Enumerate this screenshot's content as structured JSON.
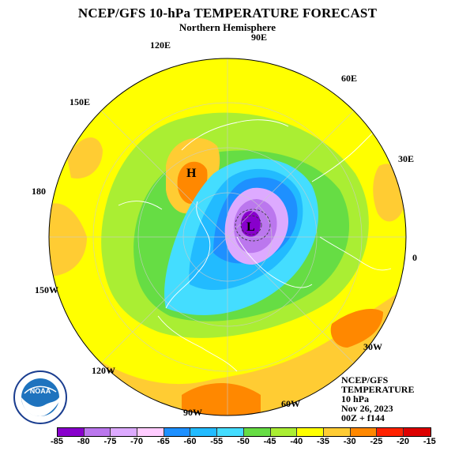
{
  "title": "NCEP/GFS 10-hPa TEMPERATURE FORECAST",
  "subtitle": "Northern Hemisphere",
  "longitudes": {
    "lon_90e": "90E",
    "lon_60e": "60E",
    "lon_30e": "30E",
    "lon_0": "0",
    "lon_30w": "30W",
    "lon_60w": "60W",
    "lon_90w": "90W",
    "lon_120w": "120W",
    "lon_150w": "150W",
    "lon_180": "180",
    "lon_150e": "150E",
    "lon_120e": "120E"
  },
  "markers": {
    "high": "H",
    "low": "L"
  },
  "info": {
    "line1": "NCEP/GFS",
    "line2": "TEMPERATURE",
    "line3": "10 hPa",
    "line4": "Nov 26, 2023",
    "line5": "00Z + f144"
  },
  "logo": {
    "text": "NOAA",
    "ring_text": "NATIONAL OCEANIC AND ATMOSPHERIC ADMINISTRATION · U.S. DEPARTMENT OF COMMERCE"
  },
  "colorbar": {
    "ticks": [
      "-85",
      "-80",
      "-75",
      "-70",
      "-65",
      "-60",
      "-55",
      "-50",
      "-45",
      "-40",
      "-35",
      "-30",
      "-25",
      "-20",
      "-15"
    ],
    "colors": [
      "#8800cc",
      "#bb77ee",
      "#ddaaff",
      "#ffccff",
      "#1e90ff",
      "#22bbff",
      "#44ddff",
      "#66dd44",
      "#aaee33",
      "#ffff00",
      "#ffcc33",
      "#ff8800",
      "#ff2200",
      "#dd0000"
    ]
  },
  "palette": {
    "yellow": "#ffff00",
    "light_orange": "#ffcc33",
    "orange": "#ff8800",
    "light_green": "#aaee33",
    "green": "#66dd44",
    "cyan": "#44ddff",
    "sky": "#22bbff",
    "blue": "#1e90ff",
    "lavender": "#ddaaff",
    "violet": "#bb77ee",
    "purple": "#8800cc"
  }
}
